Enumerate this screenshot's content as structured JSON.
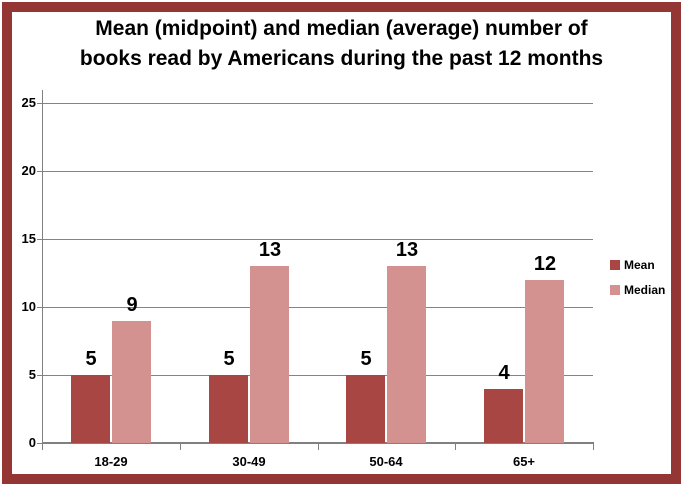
{
  "page": {
    "background": "#FFFFFF",
    "border_color": "#943634"
  },
  "chart_data": {
    "type": "bar",
    "title": "Mean (midpoint) and median (average) number of books read by Americans during the past 12 months",
    "title_lines": [
      "Mean (midpoint) and median (average) number of",
      "books read by Americans during the past 12 months"
    ],
    "categories": [
      "18-29",
      "30-49",
      "50-64",
      "65+"
    ],
    "series": [
      {
        "name": "Mean",
        "color": "#A74643",
        "values": [
          5,
          5,
          5,
          4
        ]
      },
      {
        "name": "Median",
        "color": "#D3928F",
        "values": [
          9,
          13,
          13,
          12
        ]
      }
    ],
    "yticks": [
      0,
      5,
      10,
      15,
      20,
      25
    ],
    "ylim": [
      0,
      25
    ],
    "xlabel": "",
    "ylabel": "",
    "grid": true,
    "gridline_color": "#848484",
    "axis_color": "#808080",
    "legend_position": "right",
    "value_labels": true
  }
}
